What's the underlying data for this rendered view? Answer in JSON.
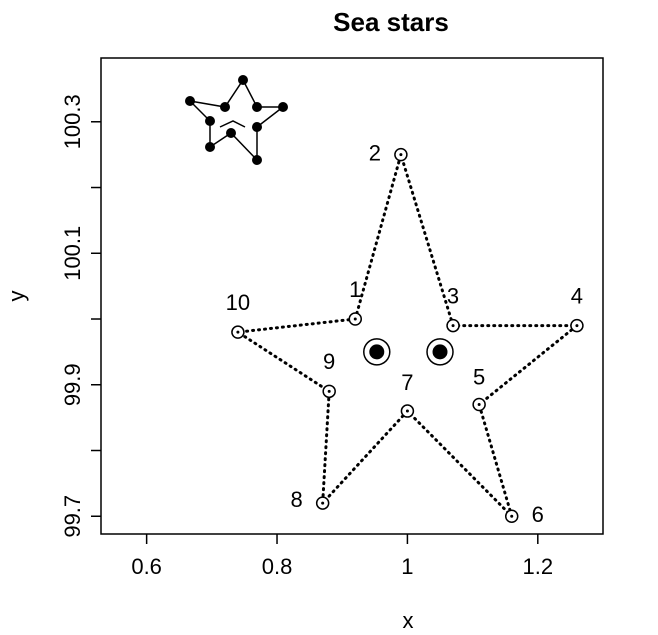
{
  "chart_data": {
    "type": "scatter",
    "title": "Sea stars",
    "x_label": "x",
    "y_label": "y",
    "xlim": [
      0.53,
      1.3
    ],
    "ylim": [
      99.673,
      100.397
    ],
    "xticks": [
      0.6,
      0.8,
      1.0,
      1.2
    ],
    "yticks": [
      99.7,
      99.9,
      100.1,
      100.3
    ],
    "yminor_ticks": [
      99.8,
      100.0,
      100.2
    ],
    "points": {
      "labels": [
        "1",
        "2",
        "3",
        "4",
        "5",
        "6",
        "7",
        "8",
        "9",
        "10"
      ],
      "x": [
        0.92,
        0.99,
        1.07,
        1.26,
        1.11,
        1.16,
        1.0,
        0.87,
        0.88,
        0.74
      ],
      "y": [
        100.0,
        100.25,
        99.99,
        99.99,
        99.87,
        99.7,
        99.86,
        99.72,
        99.89,
        99.98
      ]
    },
    "eyes": {
      "x": [
        0.953,
        1.05
      ],
      "y": [
        99.95,
        99.95
      ]
    },
    "color": "#000000"
  }
}
